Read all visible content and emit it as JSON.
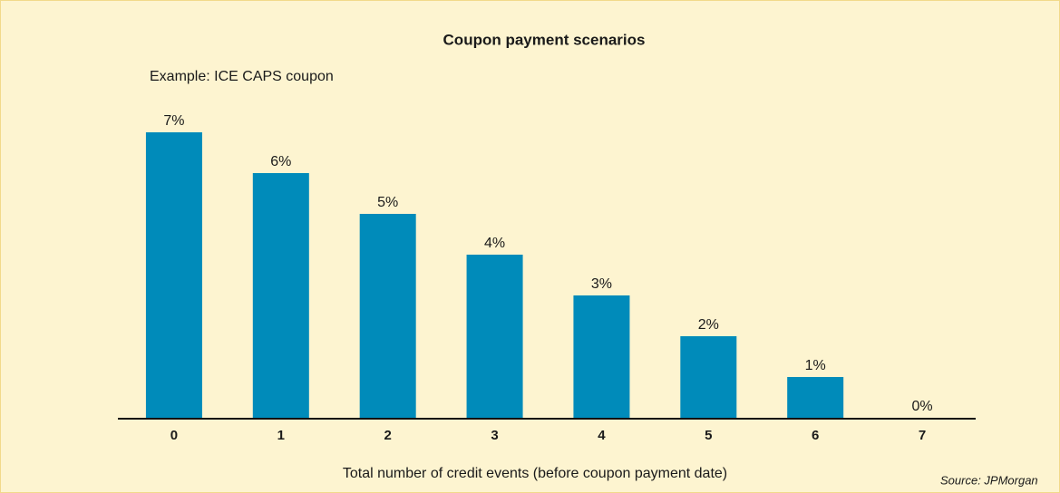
{
  "chart_data": {
    "type": "bar",
    "title": "Coupon payment scenarios",
    "subtitle": "Example: ICE CAPS coupon",
    "x_label": "Total number of credit events (before coupon payment date)",
    "source": "Source: JPMorgan",
    "categories": [
      "0",
      "1",
      "2",
      "3",
      "4",
      "5",
      "6",
      "7"
    ],
    "values": [
      7,
      6,
      5,
      4,
      3,
      2,
      1,
      0
    ],
    "value_labels": [
      "7%",
      "6%",
      "5%",
      "4%",
      "3%",
      "2%",
      "1%",
      "0%"
    ],
    "color": "#008bba",
    "ylim": [
      0,
      7
    ]
  }
}
